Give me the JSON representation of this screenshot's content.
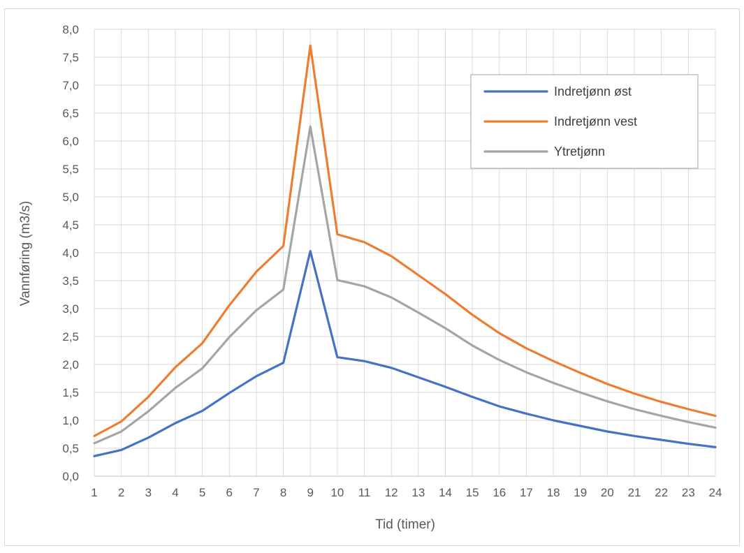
{
  "chart_data": {
    "type": "line",
    "title": "",
    "xlabel": "Tid (timer)",
    "ylabel": "Vannføring (m3/s)",
    "x": [
      1,
      2,
      3,
      4,
      5,
      6,
      7,
      8,
      9,
      10,
      11,
      12,
      13,
      14,
      15,
      16,
      17,
      18,
      19,
      20,
      21,
      22,
      23,
      24
    ],
    "ylim": [
      0,
      8
    ],
    "ytick_step": 0.5,
    "ytick_labels": [
      "0,0",
      "0,5",
      "1,0",
      "1,5",
      "2,0",
      "2,5",
      "3,0",
      "3,5",
      "4,0",
      "4,5",
      "5,0",
      "5,5",
      "6,0",
      "6,5",
      "7,0",
      "7,5",
      "8,0"
    ],
    "grid": true,
    "legend_position": "top-right",
    "series": [
      {
        "name": "Indretjønn øst",
        "color": "#4472c4",
        "values": [
          0.36,
          0.47,
          0.69,
          0.95,
          1.17,
          1.49,
          1.79,
          2.03,
          4.03,
          2.13,
          2.06,
          1.94,
          1.77,
          1.6,
          1.42,
          1.25,
          1.12,
          1.0,
          0.9,
          0.8,
          0.72,
          0.65,
          0.58,
          0.52
        ]
      },
      {
        "name": "Indretjønn vest",
        "color": "#ed7d31",
        "values": [
          0.72,
          0.98,
          1.42,
          1.95,
          2.38,
          3.06,
          3.66,
          4.12,
          7.71,
          4.33,
          4.19,
          3.94,
          3.6,
          3.26,
          2.89,
          2.56,
          2.29,
          2.06,
          1.85,
          1.65,
          1.48,
          1.33,
          1.2,
          1.08
        ]
      },
      {
        "name": "Ytretjønn",
        "color": "#a5a5a5",
        "values": [
          0.59,
          0.8,
          1.16,
          1.58,
          1.93,
          2.49,
          2.97,
          3.34,
          6.26,
          3.51,
          3.4,
          3.2,
          2.93,
          2.65,
          2.34,
          2.08,
          1.86,
          1.67,
          1.5,
          1.34,
          1.2,
          1.08,
          0.97,
          0.87
        ]
      }
    ]
  }
}
